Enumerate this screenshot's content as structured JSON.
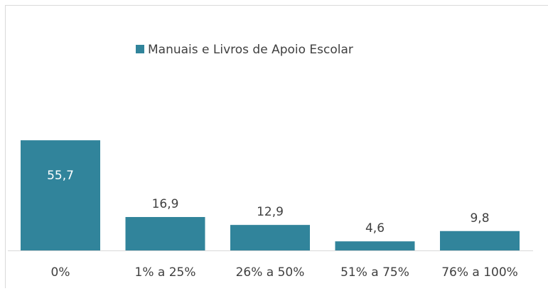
{
  "chart_data": {
    "type": "bar",
    "categories": [
      "0%",
      "1% a 25%",
      "26% a 50%",
      "51% a 75%",
      "76% a 100%"
    ],
    "series": [
      {
        "name": "Manuais e Livros de Apoio Escolar",
        "color": "#31849b",
        "values": [
          55.7,
          16.9,
          12.9,
          4.6,
          9.8
        ],
        "value_labels": [
          "55,7",
          "16,9",
          "12,9",
          "4,6",
          "9,8"
        ]
      }
    ],
    "legend": "top"
  }
}
